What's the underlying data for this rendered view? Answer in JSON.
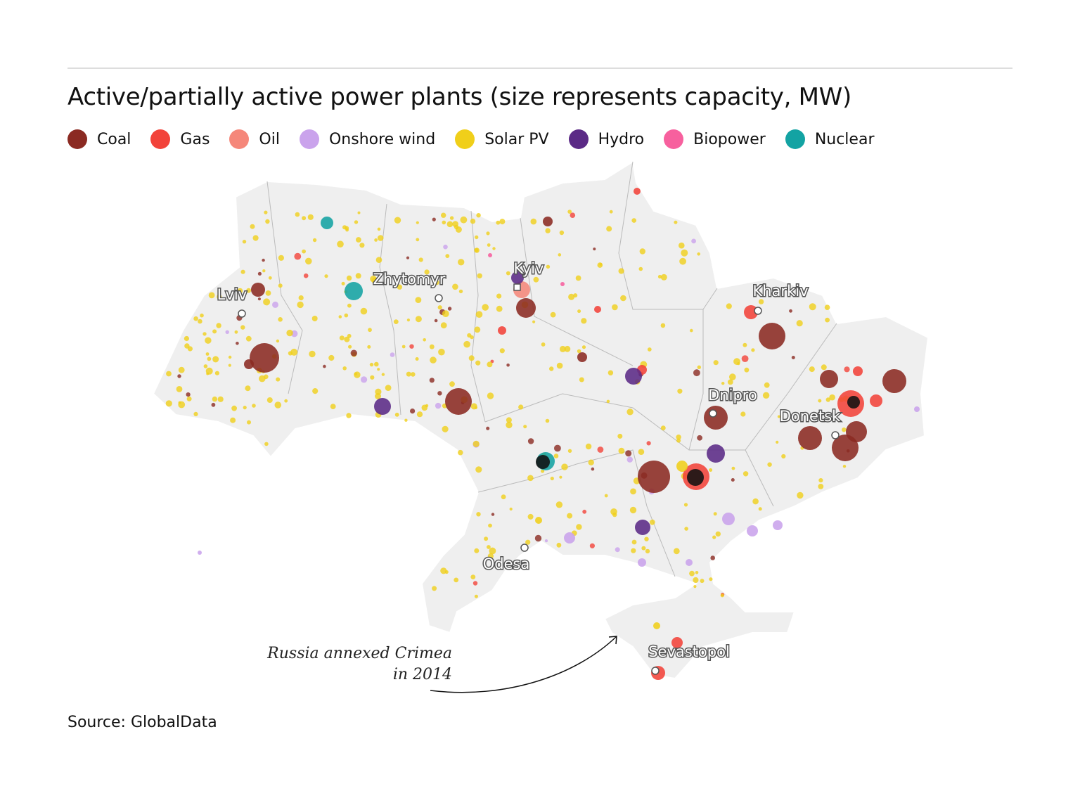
{
  "header": {
    "title": "Active/partially active power plants (size represents capacity, MW)"
  },
  "legend": [
    {
      "name": "Coal",
      "color": "#8b2a22"
    },
    {
      "name": "Gas",
      "color": "#f2433a"
    },
    {
      "name": "Oil",
      "color": "#f5877a"
    },
    {
      "name": "Onshore wind",
      "color": "#caa3ec"
    },
    {
      "name": "Solar PV",
      "color": "#f0cf1a"
    },
    {
      "name": "Hydro",
      "color": "#5b2a86"
    },
    {
      "name": "Biopower",
      "color": "#f7609e"
    },
    {
      "name": "Nuclear",
      "color": "#13a3a3"
    }
  ],
  "cities": [
    "Kyiv",
    "Zhytomyr",
    "Lviv",
    "Kharkiv",
    "Dnipro",
    "Donetsk",
    "Odesa",
    "Sevastopol"
  ],
  "annotation": [
    "Russia annexed Crimea",
    "in 2014"
  ],
  "source": "Source: GlobalData"
}
